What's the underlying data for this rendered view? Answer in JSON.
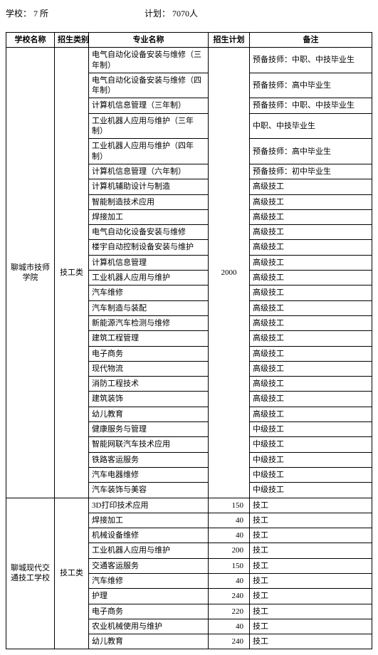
{
  "header": {
    "schools_label": "学校：",
    "schools_value": "7 所",
    "plan_label": "计划：",
    "plan_value": "7070人"
  },
  "columns": {
    "school": "学校名称",
    "category": "招生类别",
    "major": "专业名称",
    "plan": "招生计划",
    "note": "备注"
  },
  "groups": [
    {
      "school": "聊城市技师学院",
      "category": "技工类",
      "plan": "2000",
      "rows": [
        {
          "major": "电气自动化设备安装与维修（三年制）",
          "note": "预备技师：中职、中技毕业生"
        },
        {
          "major": "电气自动化设备安装与维修（四年制）",
          "note": "预备技师：高中毕业生"
        },
        {
          "major": "计算机信息管理（三年制）",
          "note": "预备技师：中职、中技毕业生"
        },
        {
          "major": "工业机器人应用与维护（三年制）",
          "note": "中职、中技毕业生"
        },
        {
          "major": "工业机器人应用与维护（四年制）",
          "note": "预备技师：高中毕业生"
        },
        {
          "major": "计算机信息管理（六年制）",
          "note": "预备技师：初中毕业生"
        },
        {
          "major": "计算机辅助设计与制造",
          "note": "高级技工"
        },
        {
          "major": "智能制造技术应用",
          "note": "高级技工"
        },
        {
          "major": "焊接加工",
          "note": "高级技工"
        },
        {
          "major": "电气自动化设备安装与维修",
          "note": "高级技工"
        },
        {
          "major": "楼宇自动控制设备安装与维护",
          "note": "高级技工"
        },
        {
          "major": "计算机信息管理",
          "note": "高级技工"
        },
        {
          "major": "工业机器人应用与维护",
          "note": "高级技工"
        },
        {
          "major": "汽车维修",
          "note": "高级技工"
        },
        {
          "major": "汽车制造与装配",
          "note": "高级技工"
        },
        {
          "major": "新能源汽车检测与维修",
          "note": "高级技工"
        },
        {
          "major": "建筑工程管理",
          "note": "高级技工"
        },
        {
          "major": "电子商务",
          "note": "高级技工"
        },
        {
          "major": "现代物流",
          "note": "高级技工"
        },
        {
          "major": "消防工程技术",
          "note": "高级技工"
        },
        {
          "major": "建筑装饰",
          "note": "高级技工"
        },
        {
          "major": "幼儿教育",
          "note": "高级技工"
        },
        {
          "major": "健康服务与管理",
          "note": "中级技工"
        },
        {
          "major": "智能网联汽车技术应用",
          "note": "中级技工"
        },
        {
          "major": "铁路客运服务",
          "note": "中级技工"
        },
        {
          "major": "汽车电器维修",
          "note": "中级技工"
        },
        {
          "major": "汽车装饰与美容",
          "note": "中级技工"
        }
      ]
    },
    {
      "school": "聊城现代交通技工学校",
      "category": "技工类",
      "rows": [
        {
          "major": "3D打印技术应用",
          "plan": "150",
          "note": "技工"
        },
        {
          "major": "焊接加工",
          "plan": "40",
          "note": "技工"
        },
        {
          "major": "机械设备维修",
          "plan": "40",
          "note": "技工"
        },
        {
          "major": "工业机器人应用与维护",
          "plan": "200",
          "note": "技工"
        },
        {
          "major": "交通客运服务",
          "plan": "150",
          "note": "技工"
        },
        {
          "major": "汽车维修",
          "plan": "40",
          "note": "技工"
        },
        {
          "major": "护理",
          "plan": "240",
          "note": "技工"
        },
        {
          "major": "电子商务",
          "plan": "220",
          "note": "技工"
        },
        {
          "major": "农业机械使用与维护",
          "plan": "40",
          "note": "技工"
        },
        {
          "major": "幼儿教育",
          "plan": "240",
          "note": "技工"
        }
      ]
    }
  ]
}
